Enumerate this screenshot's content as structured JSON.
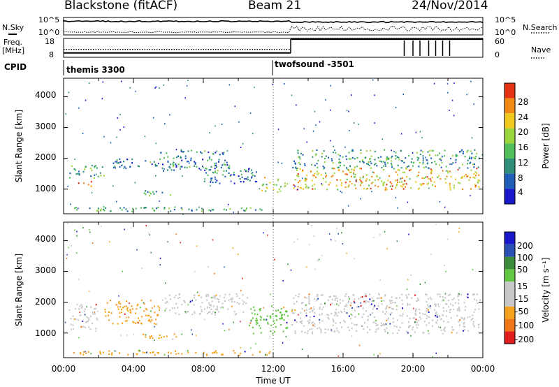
{
  "header": {
    "station": "Blackstone (fitACF)",
    "beam": "Beam 21",
    "date": "24/Nov/2014"
  },
  "labels": {
    "nsky": "N.Sky",
    "freq": "Freq.",
    "freq_unit": "[MHz]",
    "cpid": "CPID",
    "nsearch": "N.Search",
    "nave": "Nave"
  },
  "chart_data": [
    {
      "type": "line",
      "name": "noise",
      "series": [
        {
          "name": "N.Sky"
        },
        {
          "name": "N.Search"
        }
      ],
      "yticks_left": [
        "10^5",
        "10^0"
      ],
      "yticks_right": [
        "10^5",
        "10^0"
      ]
    },
    {
      "type": "line",
      "name": "frequency-nave",
      "series": [
        {
          "name": "Freq."
        },
        {
          "name": "Nave"
        }
      ],
      "yticks_left": [
        "18",
        "8"
      ],
      "yticks_right": [
        "60",
        "0"
      ],
      "freq_mhz": [
        {
          "from": 0,
          "to": 13.0,
          "value": 10.3
        },
        {
          "from": 13.0,
          "to": 24,
          "value": 17.6
        }
      ],
      "nave": [
        {
          "from": 0,
          "to": 13.0,
          "value": 25
        },
        {
          "from": 13.0,
          "to": 24,
          "value": 60
        }
      ]
    },
    {
      "type": "table",
      "name": "cpid",
      "segments": [
        {
          "start_ut": 0,
          "end_ut": 12.0,
          "label": "themis 3300"
        },
        {
          "start_ut": 12.0,
          "end_ut": 24,
          "label": "twofsound -3501"
        }
      ]
    },
    {
      "type": "heatmap",
      "name": "power",
      "xlim": [
        0,
        24
      ],
      "ylim": [
        200,
        4600
      ],
      "yticks": [
        "1000",
        "2000",
        "3000",
        "4000"
      ],
      "ylabel": "Slant Range [km]",
      "colorbar_label": "Power [dB]",
      "colorbar_ticks": [
        "4",
        "8",
        "12",
        "16",
        "20",
        "24",
        "28"
      ],
      "colorscale": [
        "#1a1acc",
        "#1f5fb8",
        "#2f8f78",
        "#52c05a",
        "#9bd53c",
        "#f0c81e",
        "#f08a14",
        "#e63214"
      ],
      "regions": [
        {
          "t0": 0.7,
          "t1": 1.7,
          "r0": 1100,
          "r1": 1350,
          "level": 0.75
        },
        {
          "t0": 0.3,
          "t1": 2.3,
          "r0": 1350,
          "r1": 1800,
          "level": 0.4
        },
        {
          "t0": 0.2,
          "t1": 11.8,
          "r0": 300,
          "r1": 450,
          "level": 0.35
        },
        {
          "t0": 2.5,
          "t1": 5.5,
          "r0": 1700,
          "r1": 2000,
          "level": 0.3
        },
        {
          "t0": 4.5,
          "t1": 6.5,
          "r0": 800,
          "r1": 1000,
          "level": 0.4
        },
        {
          "t0": 5.5,
          "t1": 9.5,
          "r0": 1600,
          "r1": 2300,
          "level": 0.3
        },
        {
          "t0": 8.0,
          "t1": 11.0,
          "r0": 1200,
          "r1": 1700,
          "level": 0.25
        },
        {
          "t0": 11.3,
          "t1": 12.8,
          "r0": 900,
          "r1": 1400,
          "level": 0.55
        },
        {
          "t0": 13.0,
          "t1": 23.8,
          "r0": 1000,
          "r1": 1700,
          "level": 0.7
        },
        {
          "t0": 13.0,
          "t1": 23.8,
          "r0": 1700,
          "r1": 2300,
          "level": 0.35
        }
      ]
    },
    {
      "type": "heatmap",
      "name": "velocity",
      "xlim": [
        0,
        24
      ],
      "ylim": [
        200,
        4600
      ],
      "yticks": [
        "1000",
        "2000",
        "3000",
        "4000"
      ],
      "ylabel": "Slant Range [km]",
      "xlabel": "Time UT",
      "xticks": [
        "00:00",
        "04:00",
        "08:00",
        "12:00",
        "16:00",
        "20:00",
        "00:00"
      ],
      "colorbar_label": "Velocity [m s⁻¹]",
      "colorbar_ticks": [
        "200",
        "100",
        "50",
        "15",
        "-15",
        "-50",
        "-100",
        "-200"
      ],
      "colorscale": [
        "#e01e1e",
        "#f07818",
        "#f5a21e",
        "#c8c8c8",
        "#c8c8c8",
        "#63c844",
        "#3c8c3c",
        "#2c50b4",
        "#1a1acc"
      ],
      "regions": [
        {
          "t0": 0.3,
          "t1": 2.0,
          "r0": 1100,
          "r1": 2000,
          "color": "#c8c8c8"
        },
        {
          "t0": 2.3,
          "t1": 5.5,
          "r0": 1300,
          "r1": 2100,
          "color": "#f5a21e"
        },
        {
          "t0": 4.5,
          "t1": 6.5,
          "r0": 800,
          "r1": 1000,
          "color": "#f5a21e"
        },
        {
          "t0": 5.5,
          "t1": 10.5,
          "r0": 1600,
          "r1": 2300,
          "color": "#c8c8c8"
        },
        {
          "t0": 0.2,
          "t1": 11.8,
          "r0": 300,
          "r1": 450,
          "color": "#f5a21e"
        },
        {
          "t0": 10.5,
          "t1": 12.8,
          "r0": 1000,
          "r1": 1900,
          "color": "#63c844"
        },
        {
          "t0": 13.0,
          "t1": 23.8,
          "r0": 1000,
          "r1": 2300,
          "color": "#c8c8c8"
        }
      ]
    }
  ]
}
